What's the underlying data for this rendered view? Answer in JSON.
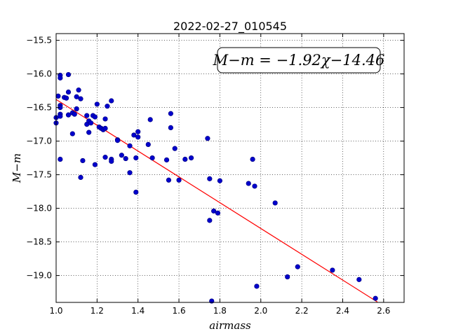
{
  "chart_data": {
    "type": "scatter",
    "title": "2022-02-27_010545",
    "xlabel": "airmass",
    "ylabel": "M−m",
    "xlim": [
      1.0,
      2.7
    ],
    "ylim": [
      -19.4,
      -15.4
    ],
    "y_inverted": true,
    "grid": true,
    "x_ticks": [
      1.0,
      1.2,
      1.4,
      1.6,
      1.8,
      2.0,
      2.2,
      2.4,
      2.6
    ],
    "x_tick_labels": [
      "1.0",
      "1.2",
      "1.4",
      "1.6",
      "1.8",
      "2.0",
      "2.2",
      "2.4",
      "2.6"
    ],
    "y_ticks": [
      -15.5,
      -16.0,
      -16.5,
      -17.0,
      -17.5,
      -18.0,
      -18.5,
      -19.0
    ],
    "y_tick_labels": [
      "−15.5",
      "−16.0",
      "−16.5",
      "−17.0",
      "−17.5",
      "−18.0",
      "−18.5",
      "−19.0"
    ],
    "point_color": "#0000cc",
    "fit_color": "#ff0000",
    "annotation": "M−m = −1.92χ−14.46",
    "fit": {
      "slope": -1.92,
      "intercept": -14.46,
      "x_range": [
        1.0,
        2.57
      ]
    },
    "points": [
      [
        1.0,
        -16.65
      ],
      [
        1.0,
        -16.73
      ],
      [
        1.01,
        -16.33
      ],
      [
        1.02,
        -16.02
      ],
      [
        1.02,
        -16.06
      ],
      [
        1.02,
        -16.47
      ],
      [
        1.02,
        -16.5
      ],
      [
        1.02,
        -16.6
      ],
      [
        1.02,
        -16.63
      ],
      [
        1.02,
        -17.27
      ],
      [
        1.04,
        -16.35
      ],
      [
        1.05,
        -16.36
      ],
      [
        1.06,
        -16.27
      ],
      [
        1.06,
        -16.61
      ],
      [
        1.06,
        -16.01
      ],
      [
        1.08,
        -16.58
      ],
      [
        1.08,
        -16.89
      ],
      [
        1.09,
        -16.6
      ],
      [
        1.1,
        -16.34
      ],
      [
        1.1,
        -16.52
      ],
      [
        1.11,
        -16.24
      ],
      [
        1.12,
        -16.37
      ],
      [
        1.12,
        -17.54
      ],
      [
        1.13,
        -17.29
      ],
      [
        1.15,
        -16.62
      ],
      [
        1.15,
        -16.75
      ],
      [
        1.16,
        -16.7
      ],
      [
        1.16,
        -16.87
      ],
      [
        1.17,
        -16.73
      ],
      [
        1.18,
        -16.62
      ],
      [
        1.19,
        -16.64
      ],
      [
        1.19,
        -17.35
      ],
      [
        1.2,
        -16.45
      ],
      [
        1.21,
        -16.79
      ],
      [
        1.22,
        -16.81
      ],
      [
        1.23,
        -16.83
      ],
      [
        1.24,
        -16.67
      ],
      [
        1.24,
        -16.81
      ],
      [
        1.24,
        -17.24
      ],
      [
        1.25,
        -16.48
      ],
      [
        1.27,
        -16.4
      ],
      [
        1.27,
        -17.27
      ],
      [
        1.27,
        -17.3
      ],
      [
        1.3,
        -16.98
      ],
      [
        1.3,
        -16.99
      ],
      [
        1.32,
        -17.21
      ],
      [
        1.34,
        -17.26
      ],
      [
        1.36,
        -17.47
      ],
      [
        1.36,
        -17.07
      ],
      [
        1.38,
        -16.91
      ],
      [
        1.39,
        -17.76
      ],
      [
        1.39,
        -17.25
      ],
      [
        1.4,
        -16.94
      ],
      [
        1.4,
        -16.86
      ],
      [
        1.45,
        -17.05
      ],
      [
        1.46,
        -16.68
      ],
      [
        1.47,
        -17.25
      ],
      [
        1.54,
        -17.28
      ],
      [
        1.55,
        -17.58
      ],
      [
        1.56,
        -16.59
      ],
      [
        1.56,
        -16.8
      ],
      [
        1.58,
        -17.11
      ],
      [
        1.6,
        -17.58
      ],
      [
        1.63,
        -17.27
      ],
      [
        1.66,
        -17.25
      ],
      [
        1.74,
        -16.96
      ],
      [
        1.75,
        -17.56
      ],
      [
        1.75,
        -18.18
      ],
      [
        1.76,
        -19.38
      ],
      [
        1.77,
        -18.04
      ],
      [
        1.79,
        -18.07
      ],
      [
        1.8,
        -17.59
      ],
      [
        1.94,
        -17.63
      ],
      [
        1.96,
        -17.27
      ],
      [
        1.97,
        -17.67
      ],
      [
        1.98,
        -19.16
      ],
      [
        2.07,
        -17.92
      ],
      [
        2.13,
        -19.02
      ],
      [
        2.18,
        -18.87
      ],
      [
        2.35,
        -18.92
      ],
      [
        2.48,
        -19.06
      ],
      [
        2.56,
        -19.34
      ]
    ]
  }
}
